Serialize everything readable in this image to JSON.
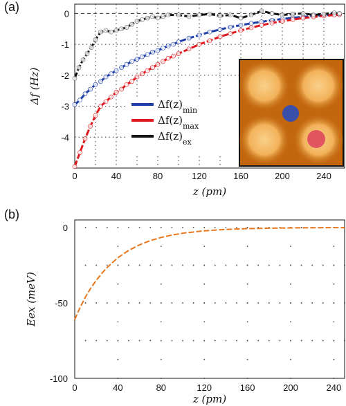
{
  "panels": {
    "a_label": "(a)",
    "b_label": "(b)"
  },
  "chart_data": [
    {
      "type": "line",
      "panel": "(a)",
      "xlabel": "z (pm)",
      "ylabel": "Δf (Hz)",
      "xlim": [
        0,
        260
      ],
      "ylim": [
        -5,
        0.3
      ],
      "xticks": [
        0,
        40,
        80,
        120,
        160,
        200,
        240
      ],
      "yticks": [
        0,
        -1,
        -2,
        -3,
        -4
      ],
      "grid": true,
      "legend_position": "center",
      "legend_entries": [
        "Δf(z)min",
        "Δf(z)max",
        "Δf(z)ex"
      ],
      "series": [
        {
          "name": "Δf(z)min",
          "color": "#1f3fa8",
          "marker": "open-circle",
          "x": [
            0,
            5,
            10,
            15,
            20,
            25,
            30,
            35,
            40,
            45,
            50,
            55,
            60,
            65,
            70,
            75,
            80,
            85,
            90,
            95,
            100,
            110,
            120,
            130,
            140,
            150,
            160,
            170,
            180,
            190,
            200,
            210,
            220,
            230,
            240,
            250,
            255
          ],
          "y": [
            -2.95,
            -2.8,
            -2.6,
            -2.45,
            -2.3,
            -2.2,
            -2.05,
            -1.95,
            -1.85,
            -1.75,
            -1.65,
            -1.55,
            -1.48,
            -1.4,
            -1.33,
            -1.25,
            -1.2,
            -1.12,
            -1.05,
            -1.0,
            -0.92,
            -0.8,
            -0.7,
            -0.6,
            -0.52,
            -0.44,
            -0.38,
            -0.32,
            -0.27,
            -0.22,
            -0.18,
            -0.14,
            -0.11,
            -0.08,
            -0.06,
            -0.04,
            -0.03
          ]
        },
        {
          "name": "Δf(z)max",
          "color": "#e0191e",
          "marker": "open-circle",
          "x": [
            0,
            5,
            10,
            15,
            20,
            25,
            30,
            35,
            40,
            45,
            50,
            55,
            60,
            65,
            70,
            75,
            80,
            85,
            90,
            95,
            100,
            110,
            120,
            130,
            140,
            150,
            160,
            170,
            180,
            190,
            200,
            210,
            220,
            230,
            240,
            250,
            255
          ],
          "y": [
            -4.95,
            -4.5,
            -4.05,
            -3.65,
            -3.3,
            -3.0,
            -2.85,
            -2.7,
            -2.55,
            -2.45,
            -2.3,
            -2.2,
            -2.05,
            -1.95,
            -1.85,
            -1.75,
            -1.65,
            -1.55,
            -1.45,
            -1.38,
            -1.3,
            -1.15,
            -1.0,
            -0.88,
            -0.75,
            -0.65,
            -0.55,
            -0.46,
            -0.38,
            -0.31,
            -0.25,
            -0.2,
            -0.15,
            -0.11,
            -0.08,
            -0.05,
            -0.04
          ]
        },
        {
          "name": "Δf(z)ex",
          "color": "#111111",
          "marker": "open-circle",
          "x": [
            0,
            4,
            8,
            12,
            16,
            20,
            25,
            30,
            35,
            40,
            45,
            50,
            55,
            60,
            65,
            70,
            75,
            80,
            85,
            90,
            100,
            110,
            120,
            130,
            140,
            150,
            160,
            170,
            180,
            190,
            200,
            210,
            220,
            230,
            240,
            250,
            255
          ],
          "y": [
            -2.1,
            -1.75,
            -1.5,
            -1.3,
            -1.1,
            -0.85,
            -0.6,
            -0.55,
            -0.6,
            -0.55,
            -0.5,
            -0.45,
            -0.35,
            -0.25,
            -0.2,
            -0.15,
            -0.1,
            -0.15,
            -0.1,
            -0.05,
            -0.05,
            -0.1,
            -0.05,
            -0.02,
            -0.08,
            -0.05,
            -0.15,
            -0.05,
            0.08,
            0.0,
            -0.05,
            -0.02,
            0.0,
            -0.05,
            -0.02,
            0.02,
            0.0
          ]
        }
      ],
      "inset": {
        "type": "image",
        "description_colors": {
          "background": "#c2670e",
          "blob": "#f2b25a",
          "dot_min": "#3a4fa8",
          "dot_max": "#e05560"
        }
      }
    },
    {
      "type": "line",
      "panel": "(b)",
      "xlabel": "z (pm)",
      "ylabel": "Eex (meV)",
      "xlim": [
        0,
        250
      ],
      "ylim": [
        -100,
        5
      ],
      "xticks": [
        0,
        40,
        80,
        120,
        160,
        200,
        240
      ],
      "yticks": [
        0,
        -50,
        -100
      ],
      "grid": true,
      "series": [
        {
          "color": "#e8751a",
          "style": "dashed",
          "x": [
            0,
            5,
            10,
            15,
            20,
            25,
            30,
            40,
            50,
            60,
            70,
            80,
            90,
            100,
            120,
            140,
            160,
            180,
            200,
            220,
            240,
            250
          ],
          "y": [
            -61,
            -53,
            -46,
            -40,
            -35,
            -30.5,
            -26.5,
            -20,
            -15.2,
            -11.5,
            -8.7,
            -6.6,
            -5.0,
            -3.8,
            -2.2,
            -1.3,
            -0.75,
            -0.45,
            -0.26,
            -0.15,
            -0.09,
            -0.07
          ]
        }
      ]
    }
  ]
}
